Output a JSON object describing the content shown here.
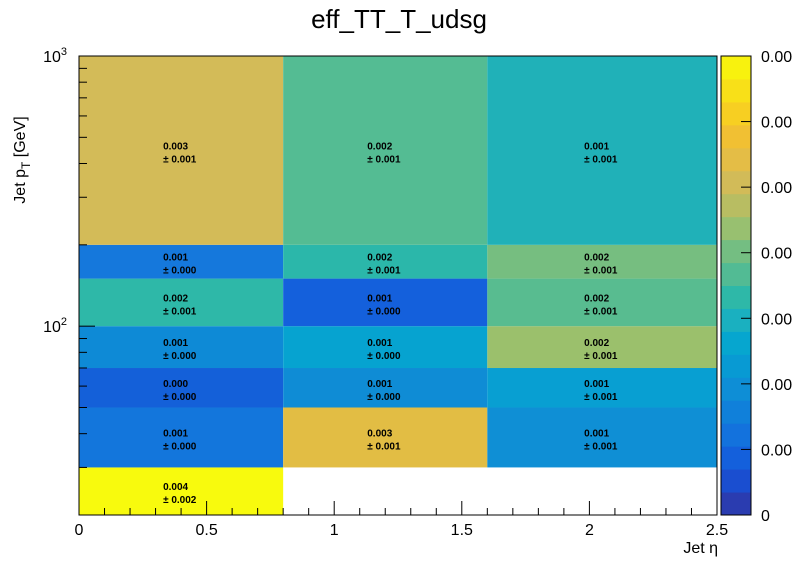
{
  "chart_data": {
    "type": "heatmap",
    "title": "eff_TT_T_udsg",
    "xlabel": "Jet η",
    "ylabel": "Jet p_T [GeV]",
    "xlim": [
      0,
      2.5
    ],
    "ylim": [
      20,
      1000
    ],
    "y_scale": "log",
    "x_ticks": [
      "0",
      "0.5",
      "1",
      "1.5",
      "2",
      "2.5"
    ],
    "y_tick_major": [
      {
        "base": "10",
        "exp": "2",
        "value": 100
      },
      {
        "base": "10",
        "exp": "3",
        "value": 1000
      }
    ],
    "x_edges": [
      0,
      0.8,
      1.6,
      2.5
    ],
    "y_edges": [
      20,
      30,
      50,
      70,
      100,
      150,
      200,
      1000
    ],
    "cells": [
      {
        "x_bin": 0,
        "y_bin": 0,
        "value": 0.004,
        "label": "0.004",
        "error": "± 0.002",
        "color": "#f8fa0d"
      },
      {
        "x_bin": 0,
        "y_bin": 1,
        "value": 0.001,
        "label": "0.001",
        "error": "± 0.000",
        "color": "#1376dc"
      },
      {
        "x_bin": 1,
        "y_bin": 1,
        "value": 0.003,
        "label": "0.003",
        "error": "± 0.001",
        "color": "#e2bd44"
      },
      {
        "x_bin": 2,
        "y_bin": 1,
        "value": 0.001,
        "label": "0.001",
        "error": "± 0.001",
        "color": "#0f8fd5"
      },
      {
        "x_bin": 0,
        "y_bin": 2,
        "value": 0.0,
        "label": "0.000",
        "error": "± 0.000",
        "color": "#1460d9"
      },
      {
        "x_bin": 1,
        "y_bin": 2,
        "value": 0.001,
        "label": "0.001",
        "error": "± 0.000",
        "color": "#0f8cd5"
      },
      {
        "x_bin": 2,
        "y_bin": 2,
        "value": 0.001,
        "label": "0.001",
        "error": "± 0.001",
        "color": "#089fd2"
      },
      {
        "x_bin": 0,
        "y_bin": 3,
        "value": 0.001,
        "label": "0.001",
        "error": "± 0.000",
        "color": "#0e8ad6"
      },
      {
        "x_bin": 1,
        "y_bin": 3,
        "value": 0.001,
        "label": "0.001",
        "error": "± 0.000",
        "color": "#06a3d0"
      },
      {
        "x_bin": 2,
        "y_bin": 3,
        "value": 0.002,
        "label": "0.002",
        "error": "± 0.001",
        "color": "#9bc06c"
      },
      {
        "x_bin": 0,
        "y_bin": 4,
        "value": 0.002,
        "label": "0.002",
        "error": "± 0.001",
        "color": "#2eb8a8"
      },
      {
        "x_bin": 1,
        "y_bin": 4,
        "value": 0.001,
        "label": "0.001",
        "error": "± 0.000",
        "color": "#1460dc"
      },
      {
        "x_bin": 2,
        "y_bin": 4,
        "value": 0.002,
        "label": "0.002",
        "error": "± 0.001",
        "color": "#58bc90"
      },
      {
        "x_bin": 0,
        "y_bin": 5,
        "value": 0.001,
        "label": "0.001",
        "error": "± 0.000",
        "color": "#1578dc"
      },
      {
        "x_bin": 1,
        "y_bin": 5,
        "value": 0.002,
        "label": "0.002",
        "error": "± 0.001",
        "color": "#2bb7aa"
      },
      {
        "x_bin": 2,
        "y_bin": 5,
        "value": 0.002,
        "label": "0.002",
        "error": "± 0.001",
        "color": "#76be80"
      },
      {
        "x_bin": 0,
        "y_bin": 6,
        "value": 0.003,
        "label": "0.003",
        "error": "± 0.001",
        "color": "#d3bb58"
      },
      {
        "x_bin": 1,
        "y_bin": 6,
        "value": 0.002,
        "label": "0.002",
        "error": "± 0.001",
        "color": "#54bc93"
      },
      {
        "x_bin": 2,
        "y_bin": 6,
        "value": 0.001,
        "label": "0.001",
        "error": "± 0.001",
        "color": "#20b1b8"
      }
    ],
    "palette": {
      "colors": [
        "#2a3cb0",
        "#1a4ed0",
        "#1460dc",
        "#1372dd",
        "#1080da",
        "#0e8ed6",
        "#089ad3",
        "#06a6cf",
        "#1ab0c0",
        "#2eb8a8",
        "#52bb94",
        "#74be82",
        "#98c070",
        "#b8bd62",
        "#d2bb58",
        "#e4bd46",
        "#f1c033",
        "#f7cf22",
        "#f8e018",
        "#f8f20e"
      ],
      "tick_labels": [
        "0",
        "0.00",
        "0.00",
        "0.00",
        "0.00",
        "0.00",
        "0.00",
        "0.00"
      ]
    }
  }
}
